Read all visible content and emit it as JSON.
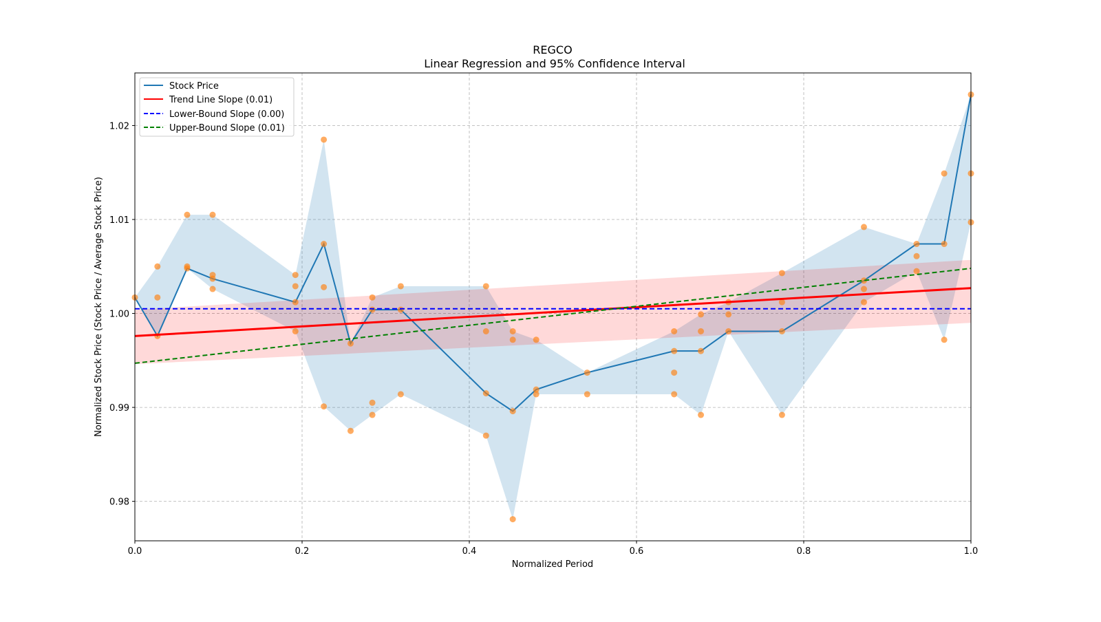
{
  "chart_data": {
    "type": "line",
    "title": "REGCO",
    "subtitle": "Linear Regression and 95% Confidence Interval",
    "xlabel": "Normalized Period",
    "ylabel": "Normalized Stock Price (Stock Price / Average Stock Price)",
    "xlim": [
      0.0,
      1.0
    ],
    "ylim": [
      0.9758,
      1.0256
    ],
    "xticks": [
      "0.0",
      "0.2",
      "0.4",
      "0.6",
      "0.8",
      "1.0"
    ],
    "yticks": [
      "0.98",
      "0.99",
      "1.00",
      "1.01",
      "1.02"
    ],
    "grid": true,
    "legend_position": "top-left",
    "legend": [
      {
        "label": "Stock Price",
        "color": "#1f77b4",
        "style": "solid"
      },
      {
        "label": "Trend Line Slope (0.01)",
        "color": "#ff0000",
        "style": "solid"
      },
      {
        "label": "Lower-Bound Slope (0.00)",
        "color": "#0000ff",
        "style": "dashed"
      },
      {
        "label": "Upper-Bound Slope (0.01)",
        "color": "#008000",
        "style": "dashed"
      }
    ],
    "stock_price": {
      "x": [
        0.0,
        0.027,
        0.0625,
        0.093,
        0.192,
        0.226,
        0.258,
        0.284,
        0.318,
        0.42,
        0.452,
        0.48,
        0.541,
        0.645,
        0.677,
        0.71,
        0.774,
        0.872,
        0.935,
        0.968,
        1.0
      ],
      "y": [
        1.0017,
        0.9976,
        1.0048,
        1.0037,
        1.0012,
        1.0074,
        0.9968,
        1.0004,
        1.0004,
        0.9915,
        0.9896,
        0.9919,
        0.9937,
        0.996,
        0.996,
        0.9981,
        0.9981,
        1.0035,
        1.0074,
        1.0074,
        1.0233
      ]
    },
    "scatter": [
      {
        "x": 0.0,
        "y": [
          1.0017
        ]
      },
      {
        "x": 0.027,
        "y": [
          1.005,
          1.0017,
          0.9976
        ]
      },
      {
        "x": 0.0625,
        "y": [
          1.0105,
          1.005,
          1.0048
        ]
      },
      {
        "x": 0.093,
        "y": [
          1.0105,
          1.0041,
          1.0037,
          1.0026
        ]
      },
      {
        "x": 0.192,
        "y": [
          1.0041,
          1.0029,
          1.0012,
          0.9981
        ]
      },
      {
        "x": 0.226,
        "y": [
          1.0185,
          1.0074,
          1.0028,
          0.9901
        ]
      },
      {
        "x": 0.258,
        "y": [
          0.9968,
          0.9875
        ]
      },
      {
        "x": 0.284,
        "y": [
          1.0017,
          1.0004,
          0.9905,
          0.9892
        ]
      },
      {
        "x": 0.318,
        "y": [
          1.0029,
          1.0004,
          0.9914
        ]
      },
      {
        "x": 0.42,
        "y": [
          1.0029,
          0.9981,
          0.9915,
          0.987
        ]
      },
      {
        "x": 0.452,
        "y": [
          0.9981,
          0.9972,
          0.9896,
          0.9781
        ]
      },
      {
        "x": 0.48,
        "y": [
          0.9972,
          0.9919,
          0.9914
        ]
      },
      {
        "x": 0.541,
        "y": [
          0.9937,
          0.9914
        ]
      },
      {
        "x": 0.645,
        "y": [
          0.9981,
          0.996,
          0.9937,
          0.9914
        ]
      },
      {
        "x": 0.677,
        "y": [
          0.9999,
          0.9981,
          0.996,
          0.9892
        ]
      },
      {
        "x": 0.71,
        "y": [
          1.0012,
          0.9999,
          0.9981
        ]
      },
      {
        "x": 0.774,
        "y": [
          1.0043,
          1.0012,
          0.9981,
          0.9892
        ]
      },
      {
        "x": 0.872,
        "y": [
          1.0092,
          1.0035,
          1.0026,
          1.0012
        ]
      },
      {
        "x": 0.935,
        "y": [
          1.0074,
          1.0061,
          1.0045
        ]
      },
      {
        "x": 0.968,
        "y": [
          1.0149,
          1.0074,
          0.9972
        ]
      },
      {
        "x": 1.0,
        "y": [
          1.0233,
          1.0149,
          1.0097
        ]
      }
    ],
    "trend_line": {
      "x": [
        0.0,
        1.0
      ],
      "y": [
        0.9976,
        1.0027
      ]
    },
    "trend_ci": {
      "x": [
        0.0,
        1.0
      ],
      "lower": [
        0.9946,
        0.999
      ],
      "upper": [
        1.0004,
        1.0057
      ]
    },
    "lower_bound_line": {
      "x": [
        0.0,
        1.0
      ],
      "y": [
        1.0005,
        1.0005
      ]
    },
    "upper_bound_line": {
      "x": [
        0.0,
        1.0
      ],
      "y": [
        0.9947,
        1.0048
      ]
    },
    "colors": {
      "band": "#1f77b4",
      "scatter": "#ff7f0e",
      "ci": "#ff0000"
    }
  }
}
